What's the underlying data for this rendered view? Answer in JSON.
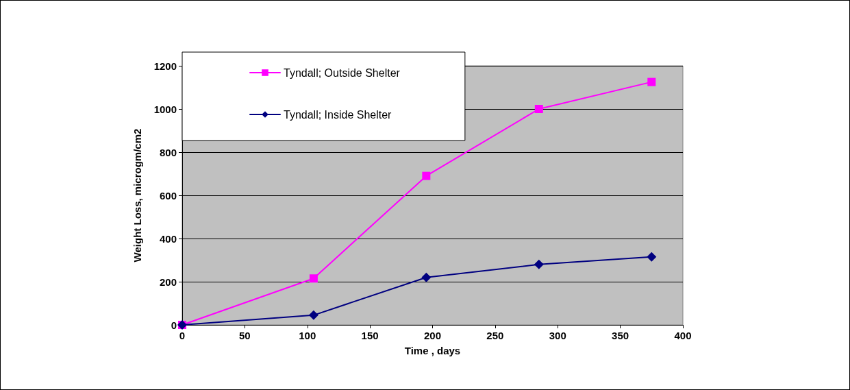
{
  "chart_data": {
    "type": "line",
    "xlabel": "Time , days",
    "ylabel": "Weight Loss, microgm/cm2",
    "x": [
      0,
      105,
      195,
      285,
      375
    ],
    "series": [
      {
        "name": "Tyndall; Outside Shelter",
        "color": "#ff00ff",
        "marker": "square",
        "values": [
          0,
          215,
          690,
          1000,
          1125
        ]
      },
      {
        "name": "Tyndall; Inside Shelter",
        "color": "#000080",
        "marker": "diamond",
        "values": [
          0,
          45,
          220,
          280,
          315
        ]
      }
    ],
    "xlim": [
      0,
      400
    ],
    "xticks": [
      0,
      50,
      100,
      150,
      200,
      250,
      300,
      350,
      400
    ],
    "ylim": [
      0,
      1200
    ],
    "yticks": [
      0,
      200,
      400,
      600,
      800,
      1000,
      1200
    ],
    "grid": "y",
    "legend": "top left",
    "line_style": "solid"
  }
}
